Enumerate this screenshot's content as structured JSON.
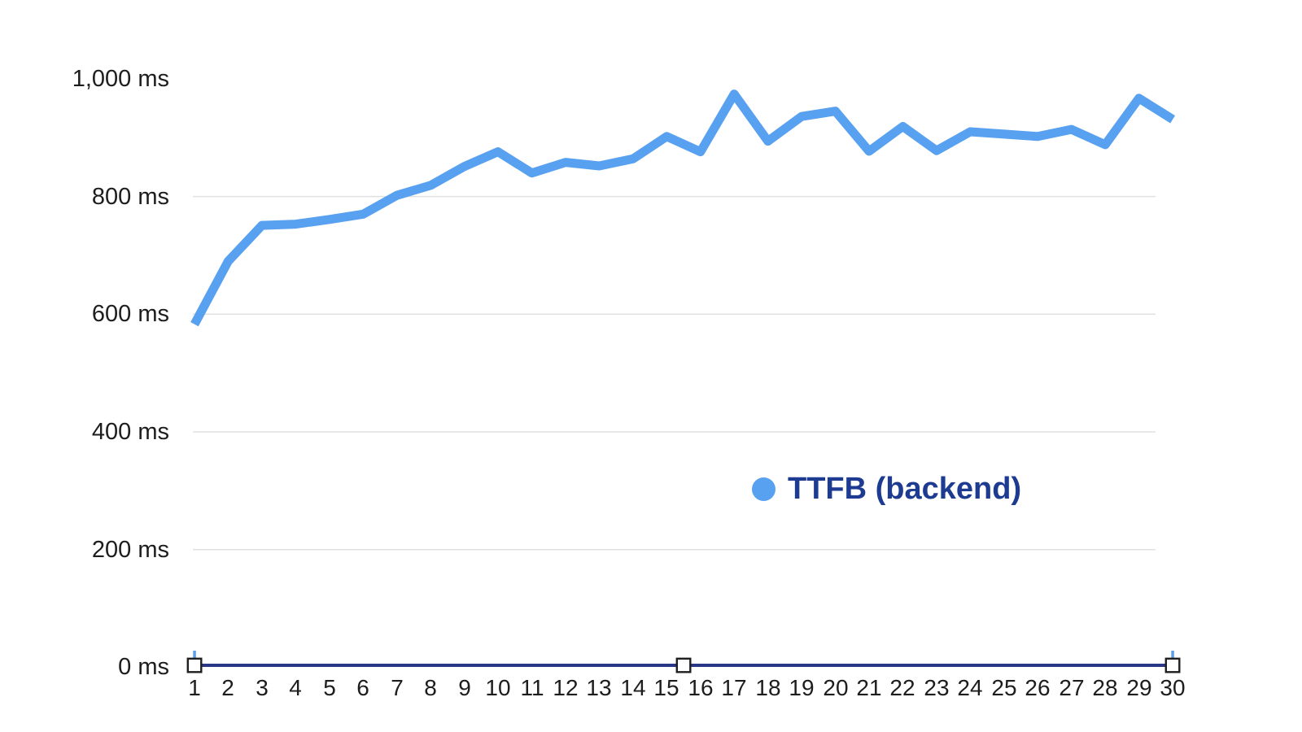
{
  "chart_data": {
    "type": "line",
    "title": "",
    "xlabel": "",
    "ylabel": "",
    "x": [
      1,
      2,
      3,
      4,
      5,
      6,
      7,
      8,
      9,
      10,
      11,
      12,
      13,
      14,
      15,
      16,
      17,
      18,
      19,
      20,
      21,
      22,
      23,
      24,
      25,
      26,
      27,
      28,
      29,
      30
    ],
    "series": [
      {
        "name": "TTFB (backend)",
        "color": "#58a0f0",
        "values": [
          583,
          690,
          751,
          753,
          761,
          770,
          802,
          819,
          851,
          876,
          840,
          858,
          852,
          864,
          902,
          876,
          974,
          894,
          936,
          945,
          877,
          919,
          878,
          910,
          906,
          902,
          914,
          888,
          967,
          931
        ]
      }
    ],
    "y_ticks": [
      {
        "value": 0,
        "label": "0 ms"
      },
      {
        "value": 200,
        "label": "200 ms"
      },
      {
        "value": 400,
        "label": "400 ms"
      },
      {
        "value": 600,
        "label": "600 ms"
      },
      {
        "value": 800,
        "label": "800 ms"
      },
      {
        "value": 1000,
        "label": "1,000 ms"
      }
    ],
    "gridline_values": [
      200,
      400,
      600,
      800
    ],
    "ylim": [
      0,
      1050
    ],
    "grid": "horizontal",
    "grid_color": "#e0e0e0",
    "axis_text_color": "#1d1d1d",
    "legend": {
      "label": "TTFB (backend)",
      "position": "center-right",
      "text_color": "#1d3b91"
    }
  },
  "range_slider": {
    "track_color": "#2a3787",
    "handle_fill": "#ffffff",
    "handle_border": "#1f1f1f",
    "handle_positions": [
      1,
      15.5,
      30
    ],
    "mini_tick_positions": [
      1,
      30
    ],
    "mini_tick_color": "#58a0f0"
  }
}
